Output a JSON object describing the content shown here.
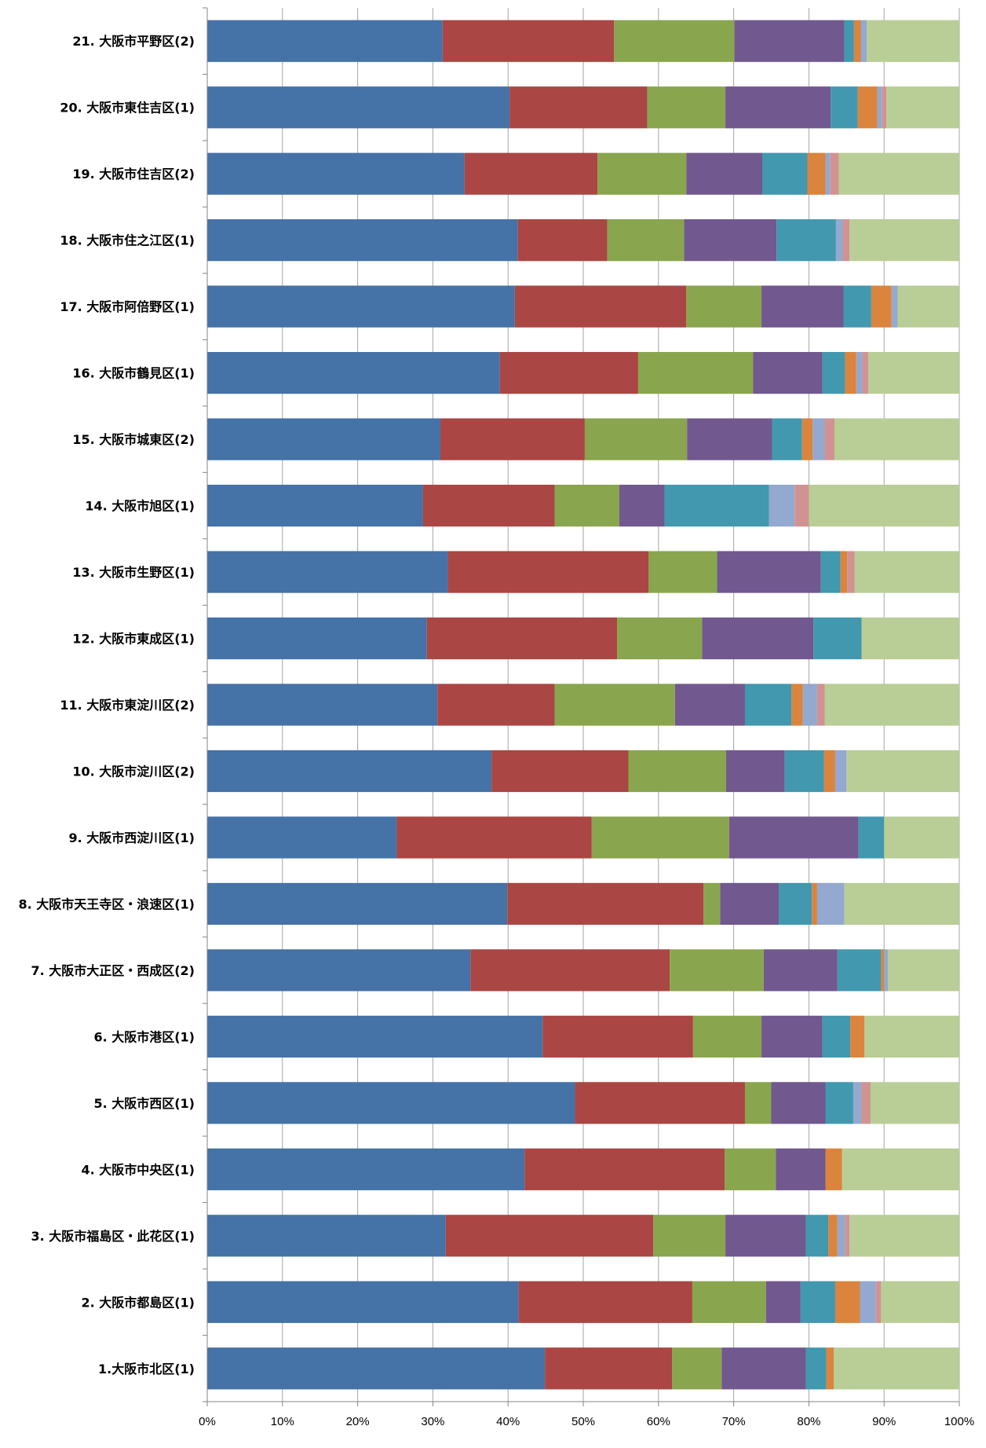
{
  "chart_data": {
    "type": "bar",
    "orientation": "horizontal",
    "stacked": "percent",
    "title": "",
    "xlabel": "",
    "ylabel": "",
    "xlim": [
      0,
      100
    ],
    "x_ticks": [
      "0%",
      "10%",
      "20%",
      "30%",
      "40%",
      "50%",
      "60%",
      "70%",
      "80%",
      "90%",
      "100%"
    ],
    "grid": "vertical",
    "legend": "none",
    "categories": [
      "1.大阪市北区(1)",
      "2. 大阪市都島区(1)",
      "3. 大阪市福島区・此花区(1)",
      "4. 大阪市中央区(1)",
      "5. 大阪市西区(1)",
      "6. 大阪市港区(1)",
      "7. 大阪市大正区・西成区(2)",
      "8. 大阪市天王寺区・浪速区(1)",
      "9. 大阪市西淀川区(1)",
      "10. 大阪市淀川区(2)",
      "11. 大阪市東淀川区(2)",
      "12. 大阪市東成区(1)",
      "13. 大阪市生野区(1)",
      "14. 大阪市旭区(1)",
      "15. 大阪市城東区(2)",
      "16. 大阪市鶴見区(1)",
      "17. 大阪市阿倍野区(1)",
      "18. 大阪市住之江区(1)",
      "19. 大阪市住吉区(2)",
      "20. 大阪市東住吉区(1)",
      "21. 大阪市平野区(2)"
    ],
    "series_colors": [
      "#4572A7",
      "#AA4643",
      "#89A54E",
      "#71588F",
      "#4198AF",
      "#DB843D",
      "#93A9CF",
      "#D19392",
      "#B9CD96"
    ],
    "series": [
      {
        "values": [
          44.9,
          41.4,
          31.7,
          42.2,
          48.9,
          44.6,
          35.0,
          39.9,
          25.2,
          37.8,
          30.6,
          29.2,
          32.0,
          28.7,
          31.0,
          38.9,
          40.9,
          41.3,
          34.2,
          40.2,
          31.3
        ]
      },
      {
        "values": [
          16.9,
          23.1,
          27.6,
          26.6,
          22.6,
          20.0,
          26.5,
          26.1,
          25.9,
          18.2,
          15.6,
          25.3,
          26.7,
          17.5,
          19.2,
          18.4,
          22.8,
          11.9,
          17.7,
          18.3,
          22.8
        ]
      },
      {
        "values": [
          6.6,
          9.8,
          9.6,
          6.8,
          3.5,
          9.1,
          12.5,
          2.2,
          18.3,
          13.0,
          16.0,
          11.3,
          9.1,
          8.6,
          13.6,
          15.3,
          10.0,
          10.2,
          11.8,
          10.4,
          16.0
        ]
      },
      {
        "values": [
          11.2,
          4.6,
          10.7,
          6.6,
          7.2,
          8.1,
          9.8,
          7.8,
          17.2,
          7.8,
          9.3,
          14.8,
          13.8,
          6.0,
          11.3,
          9.2,
          10.9,
          12.3,
          10.1,
          14.0,
          14.6
        ]
      },
      {
        "values": [
          2.7,
          4.6,
          3.0,
          0.0,
          3.7,
          3.7,
          5.8,
          4.4,
          3.4,
          5.2,
          6.2,
          6.4,
          2.6,
          13.9,
          4.0,
          3.0,
          3.7,
          7.9,
          6.0,
          3.6,
          1.3
        ]
      },
      {
        "values": [
          1.0,
          3.3,
          1.2,
          2.2,
          0.0,
          1.9,
          0.4,
          0.7,
          0.0,
          1.5,
          1.5,
          0.0,
          0.9,
          0.0,
          1.4,
          1.5,
          2.7,
          0.0,
          2.4,
          2.6,
          0.9
        ]
      },
      {
        "values": [
          0.0,
          2.1,
          1.0,
          0.0,
          1.1,
          0.0,
          0.5,
          3.6,
          0.0,
          1.5,
          1.9,
          0.0,
          0.0,
          3.4,
          1.6,
          0.8,
          0.8,
          0.9,
          0.6,
          0.6,
          0.8
        ]
      },
      {
        "values": [
          0.0,
          0.7,
          0.6,
          0.0,
          1.2,
          0.0,
          0.0,
          0.0,
          0.0,
          0.0,
          1.0,
          0.0,
          1.0,
          1.9,
          1.3,
          0.8,
          0.0,
          0.9,
          1.2,
          0.6,
          0.0
        ]
      },
      {
        "values": [
          16.7,
          10.4,
          14.6,
          15.6,
          11.8,
          12.6,
          9.5,
          15.3,
          10.0,
          15.0,
          17.9,
          13.0,
          13.9,
          20.0,
          16.6,
          12.1,
          8.2,
          14.6,
          16.0,
          9.7,
          12.3
        ]
      }
    ]
  }
}
